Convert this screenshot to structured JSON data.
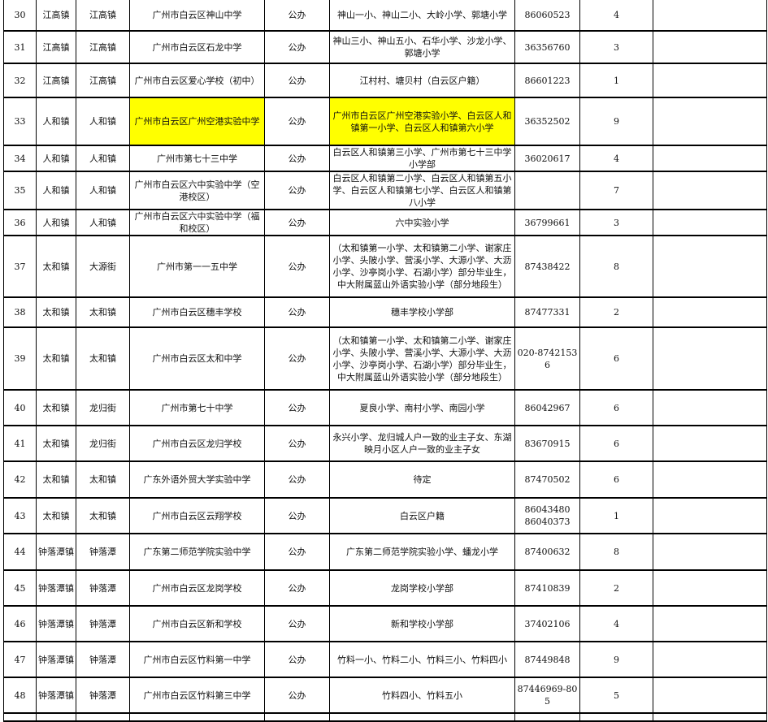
{
  "highlight_color": "#ffff00",
  "rows": [
    {
      "no": "30",
      "town": "江高镇",
      "street": "江高镇",
      "school": "广州市白云区神山中学",
      "type": "公办",
      "primary": "神山一小、神山二小、大岭小学、郭塘小学",
      "phone": "86060523",
      "count": "4",
      "note": ""
    },
    {
      "no": "31",
      "town": "江高镇",
      "street": "江高镇",
      "school": "广州市白云区石龙中学",
      "type": "公办",
      "primary": "神山三小、神山五小、石华小学、沙龙小学、郭塘小学",
      "phone": "36356760",
      "count": "3",
      "note": ""
    },
    {
      "no": "32",
      "town": "江高镇",
      "street": "江高镇",
      "school": "广州市白云区爱心学校（初中）",
      "type": "公办",
      "primary": "江村村、塘贝村（白云区户籍）",
      "phone": "86601223",
      "count": "1",
      "note": ""
    },
    {
      "no": "33",
      "town": "人和镇",
      "street": "人和镇",
      "school": "广州市白云区广州空港实验中学",
      "type": "公办",
      "primary": "广州市白云区广州空港实验小学、白云区人和镇第一小学、白云区人和镇第六小学",
      "phone": "36352502",
      "count": "9",
      "note": "",
      "highlight": true
    },
    {
      "no": "34",
      "town": "人和镇",
      "street": "人和镇",
      "school": "广州市第七十三中学",
      "type": "公办",
      "primary": "白云区人和镇第三小学、广州市第七十三中学小学部",
      "phone": "36020617",
      "count": "4",
      "note": ""
    },
    {
      "no": "35",
      "town": "人和镇",
      "street": "人和镇",
      "school": "广州市白云区六中实验中学（空港校区）",
      "type": "公办",
      "primary": "白云区人和镇第二小学、白云区人和镇第五小学、白云区人和镇第七小学、白云区人和镇第八小学",
      "phone": "",
      "count": "7",
      "note": ""
    },
    {
      "no": "36",
      "town": "人和镇",
      "street": "人和镇",
      "school": "广州市白云区六中实验中学（福和校区）",
      "type": "公办",
      "primary": "六中实验小学",
      "phone": "36799661",
      "count": "3",
      "note": ""
    },
    {
      "no": "37",
      "town": "太和镇",
      "street": "大源街",
      "school": "广州市第一一五中学",
      "type": "公办",
      "primary": "（太和镇第一小学、太和镇第二小学、谢家庄小学、头陂小学、营溪小学、大源小学、大沥小学、沙亭岗小学、石湖小学）部分毕业生，中大附属蓝山外语实验小学（部分地段生）",
      "phone": "87438422",
      "count": "8",
      "note": ""
    },
    {
      "no": "38",
      "town": "太和镇",
      "street": "太和镇",
      "school": "广州市白云区穗丰学校",
      "type": "公办",
      "primary": "穗丰学校小学部",
      "phone": "87477331",
      "count": "2",
      "note": ""
    },
    {
      "no": "39",
      "town": "太和镇",
      "street": "太和镇",
      "school": "广州市白云区太和中学",
      "type": "公办",
      "primary": "（太和镇第一小学、太和镇第二小学、谢家庄小学、头陂小学、营溪小学、大源小学、大沥小学、沙亭岗小学、石湖小学）部分毕业生，中大附属蓝山外语实验小学（部分地段生）",
      "phone": "020-87421536",
      "count": "6",
      "note": ""
    },
    {
      "no": "40",
      "town": "太和镇",
      "street": "龙归街",
      "school": "广州市第七十中学",
      "type": "公办",
      "primary": "夏良小学、南村小学、南园小学",
      "phone": "86042967",
      "count": "6",
      "note": ""
    },
    {
      "no": "41",
      "town": "太和镇",
      "street": "龙归街",
      "school": "广州市白云区龙归学校",
      "type": "公办",
      "primary": "永兴小学、龙归城人户一致的业主子女、东湖映月小区人户一致的业主子女",
      "phone": "83670915",
      "count": "6",
      "note": ""
    },
    {
      "no": "42",
      "town": "太和镇",
      "street": "太和镇",
      "school": "广东外语外贸大学实验中学",
      "type": "公办",
      "primary": "待定",
      "phone": "87470502",
      "count": "6",
      "note": ""
    },
    {
      "no": "43",
      "town": "太和镇",
      "street": "太和镇",
      "school": "广州市白云区云翔学校",
      "type": "公办",
      "primary": "白云区户籍",
      "phone": "86043480 86040373",
      "count": "1",
      "note": ""
    },
    {
      "no": "44",
      "town": "钟落潭镇",
      "street": "钟落潭",
      "school": "广东第二师范学院实验中学",
      "type": "公办",
      "primary": "广东第二师范学院实验小学、蟠龙小学",
      "phone": "87400632",
      "count": "8",
      "note": ""
    },
    {
      "no": "45",
      "town": "钟落潭镇",
      "street": "钟落潭",
      "school": "广州市白云区龙岗学校",
      "type": "公办",
      "primary": "龙岗学校小学部",
      "phone": "87410839",
      "count": "2",
      "note": ""
    },
    {
      "no": "46",
      "town": "钟落潭镇",
      "street": "钟落潭",
      "school": "广州市白云区新和学校",
      "type": "公办",
      "primary": "新和学校小学部",
      "phone": "37402106",
      "count": "4",
      "note": ""
    },
    {
      "no": "47",
      "town": "钟落潭镇",
      "street": "钟落潭",
      "school": "广州市白云区竹料第一中学",
      "type": "公办",
      "primary": "竹料一小、竹料二小、竹料三小、竹料四小",
      "phone": "87449848",
      "count": "9",
      "note": ""
    },
    {
      "no": "48",
      "town": "钟落潭镇",
      "street": "钟落潭",
      "school": "广州市白云区竹料第三中学",
      "type": "公办",
      "primary": "竹料四小、竹料五小",
      "phone": "87446969-805",
      "count": "5",
      "note": ""
    }
  ]
}
